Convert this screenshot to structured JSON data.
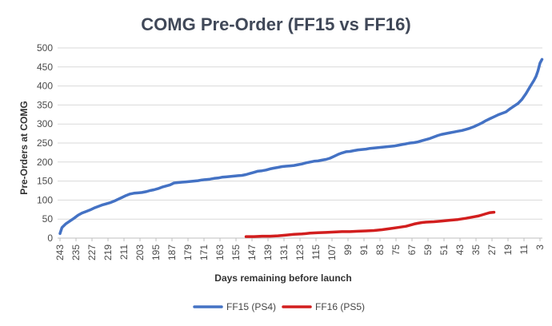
{
  "chart_data": {
    "type": "line",
    "title": "COMG Pre-Order (FF15 vs FF16)",
    "xlabel": "Days remaining before launch",
    "ylabel": "Pre-Orders at COMG",
    "x_reversed": true,
    "xlim": [
      243,
      3
    ],
    "ylim": [
      0,
      500
    ],
    "y_ticks": [
      0,
      50,
      100,
      150,
      200,
      250,
      300,
      350,
      400,
      450,
      500
    ],
    "x_ticks": [
      243,
      235,
      227,
      219,
      211,
      203,
      195,
      187,
      179,
      171,
      163,
      155,
      147,
      139,
      131,
      123,
      115,
      107,
      99,
      91,
      83,
      75,
      67,
      59,
      51,
      43,
      35,
      27,
      19,
      11,
      3
    ],
    "y_grid": true,
    "x_grid": false,
    "legend_position": "bottom",
    "series": [
      {
        "name": "FF15 (PS4)",
        "color": "#4472C4",
        "points": [
          [
            243,
            12
          ],
          [
            242,
            28
          ],
          [
            240,
            38
          ],
          [
            238,
            45
          ],
          [
            236,
            52
          ],
          [
            234,
            60
          ],
          [
            232,
            66
          ],
          [
            230,
            70
          ],
          [
            228,
            74
          ],
          [
            226,
            79
          ],
          [
            224,
            83
          ],
          [
            222,
            87
          ],
          [
            220,
            90
          ],
          [
            218,
            93
          ],
          [
            216,
            97
          ],
          [
            214,
            102
          ],
          [
            212,
            107
          ],
          [
            210,
            112
          ],
          [
            208,
            116
          ],
          [
            206,
            118
          ],
          [
            204,
            119
          ],
          [
            202,
            120
          ],
          [
            200,
            122
          ],
          [
            198,
            125
          ],
          [
            196,
            127
          ],
          [
            194,
            130
          ],
          [
            192,
            134
          ],
          [
            190,
            137
          ],
          [
            188,
            140
          ],
          [
            186,
            145
          ],
          [
            184,
            146
          ],
          [
            182,
            147
          ],
          [
            180,
            148
          ],
          [
            178,
            149
          ],
          [
            176,
            150
          ],
          [
            174,
            151
          ],
          [
            172,
            153
          ],
          [
            170,
            154
          ],
          [
            168,
            155
          ],
          [
            166,
            157
          ],
          [
            164,
            158
          ],
          [
            162,
            160
          ],
          [
            160,
            161
          ],
          [
            158,
            162
          ],
          [
            156,
            163
          ],
          [
            154,
            164
          ],
          [
            152,
            165
          ],
          [
            150,
            167
          ],
          [
            148,
            170
          ],
          [
            146,
            173
          ],
          [
            144,
            176
          ],
          [
            142,
            177
          ],
          [
            140,
            179
          ],
          [
            138,
            182
          ],
          [
            136,
            184
          ],
          [
            134,
            186
          ],
          [
            132,
            188
          ],
          [
            130,
            189
          ],
          [
            128,
            190
          ],
          [
            126,
            191
          ],
          [
            124,
            193
          ],
          [
            122,
            195
          ],
          [
            120,
            198
          ],
          [
            118,
            200
          ],
          [
            116,
            202
          ],
          [
            114,
            203
          ],
          [
            112,
            205
          ],
          [
            110,
            207
          ],
          [
            108,
            210
          ],
          [
            106,
            215
          ],
          [
            104,
            220
          ],
          [
            102,
            224
          ],
          [
            100,
            227
          ],
          [
            98,
            228
          ],
          [
            96,
            230
          ],
          [
            94,
            232
          ],
          [
            92,
            233
          ],
          [
            90,
            234
          ],
          [
            88,
            236
          ],
          [
            86,
            237
          ],
          [
            84,
            238
          ],
          [
            82,
            239
          ],
          [
            80,
            240
          ],
          [
            78,
            241
          ],
          [
            76,
            242
          ],
          [
            74,
            244
          ],
          [
            72,
            246
          ],
          [
            70,
            248
          ],
          [
            68,
            250
          ],
          [
            66,
            251
          ],
          [
            64,
            253
          ],
          [
            62,
            256
          ],
          [
            60,
            259
          ],
          [
            58,
            262
          ],
          [
            56,
            266
          ],
          [
            54,
            270
          ],
          [
            52,
            273
          ],
          [
            50,
            275
          ],
          [
            48,
            277
          ],
          [
            46,
            279
          ],
          [
            44,
            281
          ],
          [
            42,
            283
          ],
          [
            40,
            286
          ],
          [
            38,
            289
          ],
          [
            36,
            293
          ],
          [
            34,
            298
          ],
          [
            32,
            303
          ],
          [
            30,
            309
          ],
          [
            28,
            314
          ],
          [
            26,
            319
          ],
          [
            24,
            324
          ],
          [
            22,
            328
          ],
          [
            20,
            332
          ],
          [
            18,
            340
          ],
          [
            16,
            347
          ],
          [
            14,
            354
          ],
          [
            12,
            365
          ],
          [
            10,
            380
          ],
          [
            8,
            398
          ],
          [
            6,
            415
          ],
          [
            5,
            425
          ],
          [
            4,
            440
          ],
          [
            3,
            460
          ],
          [
            2,
            470
          ]
        ]
      },
      {
        "name": "FF16 (PS5)",
        "color": "#D21E1E",
        "points": [
          [
            150,
            4
          ],
          [
            146,
            4
          ],
          [
            142,
            5
          ],
          [
            138,
            5
          ],
          [
            134,
            6
          ],
          [
            130,
            8
          ],
          [
            126,
            10
          ],
          [
            122,
            11
          ],
          [
            118,
            13
          ],
          [
            114,
            14
          ],
          [
            110,
            15
          ],
          [
            106,
            16
          ],
          [
            102,
            17
          ],
          [
            98,
            17
          ],
          [
            94,
            18
          ],
          [
            90,
            19
          ],
          [
            86,
            20
          ],
          [
            82,
            22
          ],
          [
            78,
            25
          ],
          [
            74,
            28
          ],
          [
            70,
            31
          ],
          [
            68,
            34
          ],
          [
            66,
            37
          ],
          [
            64,
            39
          ],
          [
            62,
            41
          ],
          [
            60,
            42
          ],
          [
            56,
            43
          ],
          [
            52,
            45
          ],
          [
            48,
            47
          ],
          [
            44,
            49
          ],
          [
            40,
            52
          ],
          [
            36,
            56
          ],
          [
            34,
            58
          ],
          [
            32,
            61
          ],
          [
            30,
            64
          ],
          [
            28,
            67
          ],
          [
            26,
            68
          ]
        ]
      }
    ]
  }
}
